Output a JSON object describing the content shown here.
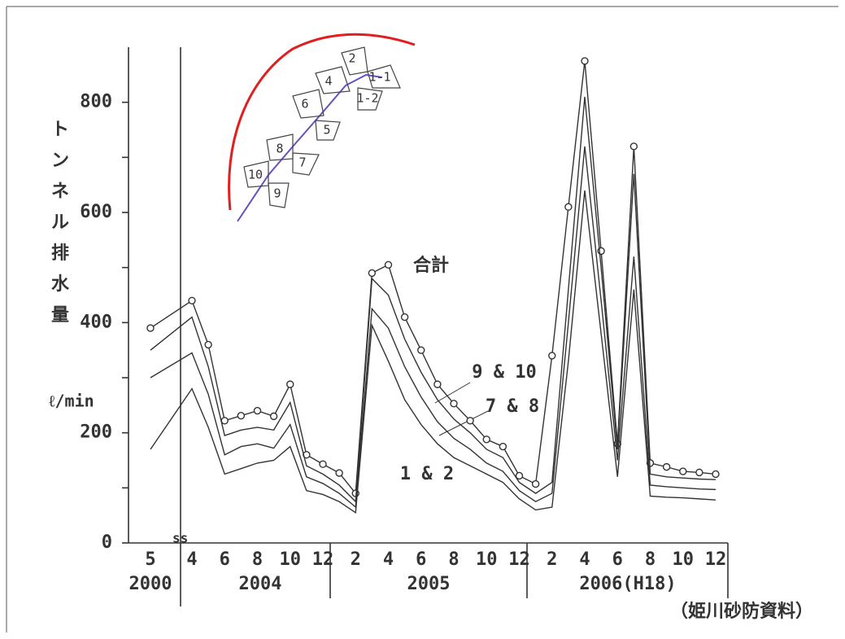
{
  "chart_data": {
    "type": "line",
    "y_label": "トンネル排水量",
    "y_unit": "ℓ/min",
    "source": "（姫川砂防資料）",
    "categories": [
      "5",
      "4",
      null,
      "6",
      null,
      "8",
      null,
      "10",
      null,
      "12",
      null,
      "2",
      null,
      "4",
      null,
      "6",
      null,
      "8",
      null,
      "10",
      null,
      "12",
      null,
      "2",
      null,
      "4",
      null,
      "6",
      null,
      "8",
      null,
      "10",
      null,
      "12"
    ],
    "year_labels": [
      "2000",
      "2004",
      "2005",
      "2006(H18)"
    ],
    "ylim": [
      0,
      900
    ],
    "yticks": [
      0,
      200,
      400,
      600,
      800
    ],
    "minor_yticks": [
      100,
      300,
      500,
      700
    ],
    "color": "#333333",
    "series": [
      {
        "name": "合計",
        "marker": "circle",
        "values": [
          390,
          440,
          360,
          222,
          231,
          240,
          230,
          288,
          160,
          143,
          127,
          90,
          490,
          505,
          410,
          350,
          288,
          253,
          222,
          188,
          175,
          122,
          107,
          340,
          610,
          875,
          530,
          180,
          720,
          145,
          138,
          130,
          128,
          125
        ]
      },
      {
        "name": "9 & 10",
        "values": [
          350,
          410,
          320,
          195,
          205,
          210,
          205,
          255,
          140,
          125,
          105,
          75,
          480,
          450,
          370,
          310,
          260,
          225,
          200,
          170,
          155,
          110,
          90,
          110,
          460,
          810,
          500,
          170,
          670,
          125,
          120,
          118,
          116,
          115
        ]
      },
      {
        "name": "7 & 8",
        "values": [
          300,
          345,
          270,
          160,
          175,
          180,
          172,
          215,
          120,
          108,
          90,
          65,
          425,
          390,
          320,
          265,
          220,
          190,
          170,
          145,
          130,
          95,
          75,
          90,
          400,
          720,
          440,
          150,
          520,
          105,
          102,
          100,
          98,
          97
        ]
      },
      {
        "name": "1 & 2",
        "values": [
          170,
          280,
          210,
          125,
          135,
          145,
          150,
          175,
          95,
          88,
          75,
          55,
          395,
          330,
          260,
          215,
          180,
          155,
          140,
          125,
          110,
          80,
          60,
          65,
          330,
          640,
          380,
          120,
          460,
          85,
          83,
          82,
          80,
          78
        ]
      }
    ],
    "inset_labels": [
      "2",
      "1-1",
      "4",
      "1-2",
      "6",
      "5",
      "8",
      "7",
      "10",
      "9"
    ]
  }
}
